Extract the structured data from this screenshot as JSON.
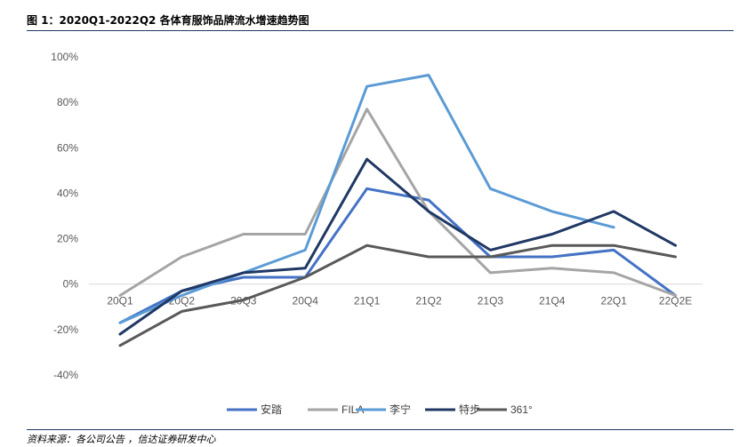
{
  "figure": {
    "title": "图 1：2020Q1-2022Q2 各体育服饰品牌流水增速趋势图",
    "source": "资料来源：各公司公告 ，信达证券研发中心"
  },
  "chart_data": {
    "type": "line",
    "title": "",
    "xlabel": "",
    "ylabel": "",
    "categories": [
      "20Q1",
      "20Q2",
      "20Q3",
      "20Q4",
      "21Q1",
      "21Q2",
      "21Q3",
      "21Q4",
      "22Q1",
      "22Q2E"
    ],
    "y_ticks": [
      "100%",
      "80%",
      "60%",
      "40%",
      "20%",
      "0%",
      "-20%",
      "-40%"
    ],
    "y_tick_values": [
      100,
      80,
      60,
      40,
      20,
      0,
      -20,
      -40
    ],
    "ylim": [
      -40,
      100
    ],
    "grid": false,
    "legend_position": "bottom",
    "series": [
      {
        "name": "安踏",
        "color": "#4472c4",
        "values": [
          -17,
          -3,
          3,
          3,
          42,
          37,
          12,
          12,
          15,
          -5
        ]
      },
      {
        "name": "FILA",
        "color": "#a5a5a5",
        "values": [
          -5,
          12,
          22,
          22,
          77,
          32,
          5,
          7,
          5,
          -5
        ]
      },
      {
        "name": "李宁",
        "color": "#5b9bd5",
        "values": [
          -17,
          -5,
          5,
          15,
          87,
          92,
          42,
          32,
          25,
          null
        ]
      },
      {
        "name": "特步",
        "color": "#203864",
        "values": [
          -22,
          -3,
          5,
          7,
          55,
          32,
          15,
          22,
          32,
          17
        ]
      },
      {
        "name": "361°",
        "color": "#595959",
        "values": [
          -27,
          -12,
          -7,
          3,
          17,
          12,
          12,
          17,
          17,
          12
        ]
      }
    ]
  }
}
